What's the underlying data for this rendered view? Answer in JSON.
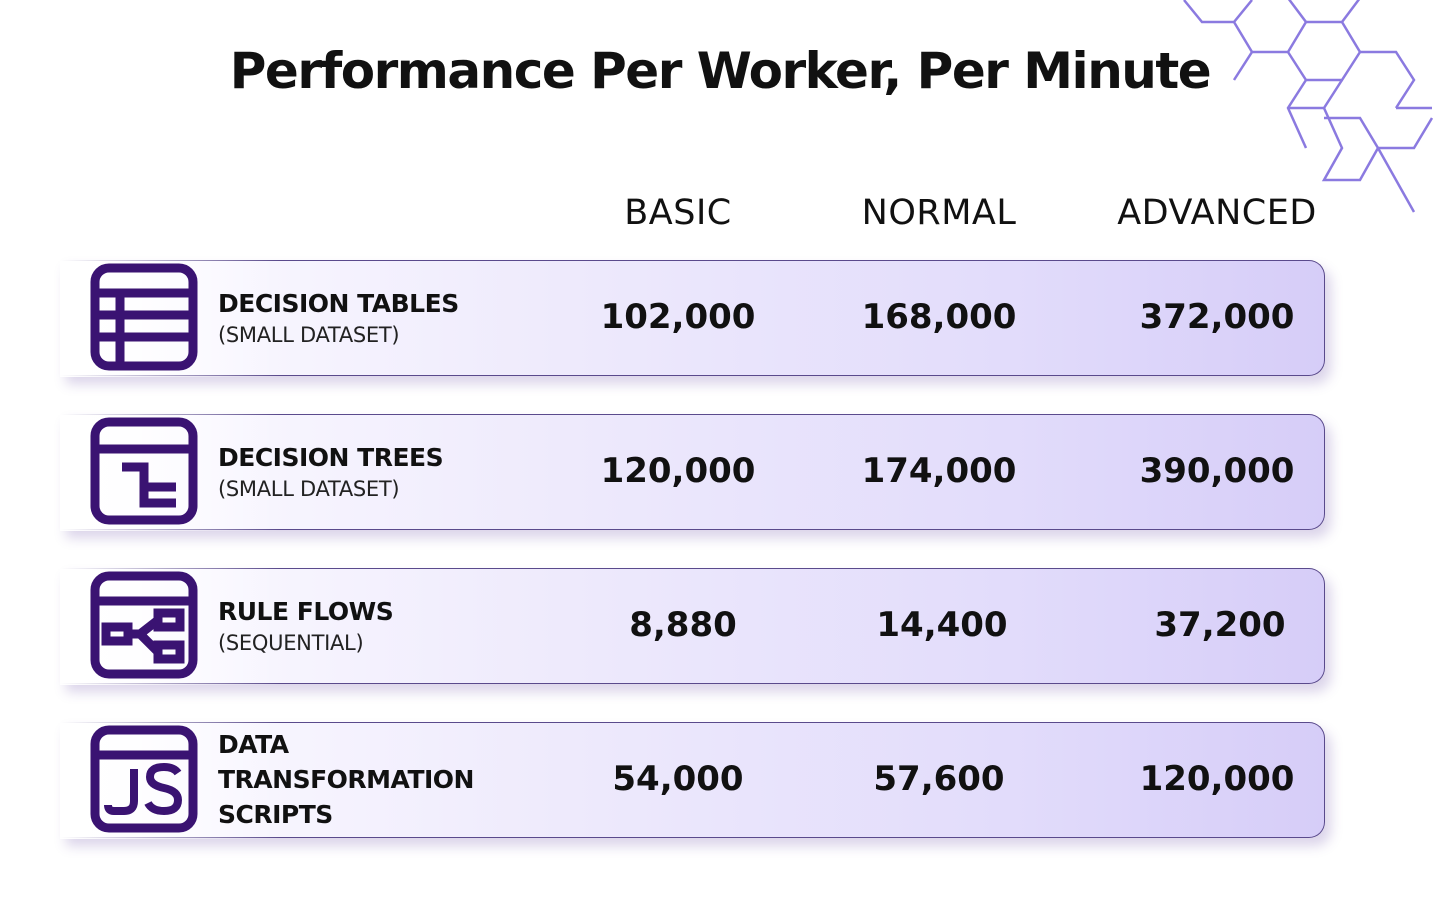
{
  "title": "Performance Per Worker, Per Minute",
  "colors": {
    "icon": "#3a1372",
    "card_border": "#5a4a8c",
    "card_gradient_end": "#d6cdf8",
    "hex_lines": "#8b7ae0"
  },
  "chart_data": {
    "type": "table",
    "title": "Performance Per Worker, Per Minute",
    "columns": [
      "BASIC",
      "NORMAL",
      "ADVANCED"
    ],
    "rows": [
      {
        "label": "DECISION TABLES",
        "sublabel": "(SMALL DATASET)",
        "icon": "table-icon",
        "values": [
          "102,000",
          "168,000",
          "372,000"
        ]
      },
      {
        "label": "DECISION TREES",
        "sublabel": "(SMALL DATASET)",
        "icon": "decision-tree-icon",
        "values": [
          "120,000",
          "174,000",
          "390,000"
        ]
      },
      {
        "label": "RULE FLOWS",
        "sublabel": "(SEQUENTIAL)",
        "icon": "flow-icon",
        "values": [
          "8,880",
          "14,400",
          "37,200"
        ]
      },
      {
        "label": "DATA\nTRANSFORMATION\nSCRIPTS",
        "sublabel": "",
        "icon": "js-icon",
        "values": [
          "54,000",
          "57,600",
          "120,000"
        ]
      }
    ]
  }
}
